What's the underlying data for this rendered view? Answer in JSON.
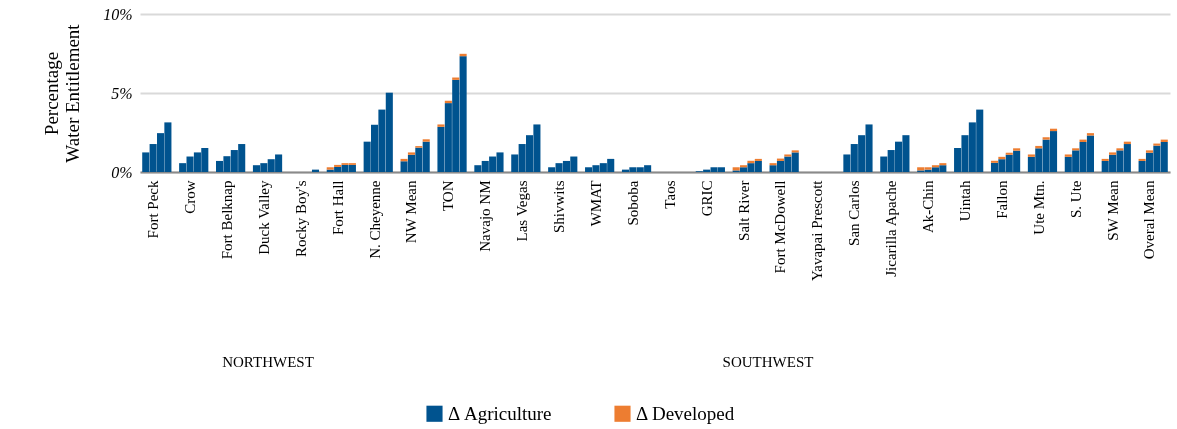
{
  "chart_data": {
    "type": "bar",
    "stacked": true,
    "ylabel": "Percentage Water Entitlement",
    "categories": [
      null,
      "Fort Peck",
      null,
      null,
      null,
      null,
      "Crow",
      null,
      null,
      null,
      null,
      "Fort Belknap",
      null,
      null,
      null,
      null,
      "Duck Valley",
      null,
      null,
      null,
      null,
      "Rocky Boy's",
      null,
      null,
      null,
      null,
      "Fort Hall",
      null,
      null,
      null,
      null,
      "N. Cheyenne",
      null,
      null,
      null,
      null,
      "NW Mean",
      null,
      null,
      null,
      null,
      "TON",
      null,
      null,
      null,
      null,
      "Navajo NM",
      null,
      null,
      null,
      null,
      "Las Vegas",
      null,
      null,
      null,
      null,
      "Shivwits",
      null,
      null,
      null,
      null,
      "WMAT",
      null,
      null,
      null,
      null,
      "Soboba",
      null,
      null,
      null,
      null,
      "Taos",
      null,
      null,
      null,
      null,
      "GRIC",
      null,
      null,
      null,
      null,
      "Salt River",
      null,
      null,
      null,
      null,
      "Fort McDowell",
      null,
      null,
      null,
      null,
      "Yavapai Prescott",
      null,
      null,
      null,
      null,
      "San Carlos",
      null,
      null,
      null,
      null,
      "Jicarilla Apache",
      null,
      null,
      null,
      null,
      "Ak-Chin",
      null,
      null,
      null,
      null,
      "Uintah",
      null,
      null,
      null,
      null,
      "Fallon",
      null,
      null,
      null,
      null,
      "Ute Mtn.",
      null,
      null,
      null,
      null,
      "S. Ute",
      null,
      null,
      null,
      null,
      "SW Mean",
      null,
      null,
      null,
      null,
      "Overal Mean",
      null,
      null
    ],
    "series": [
      {
        "name": "Δ Agriculture",
        "color": "#00538f",
        "values": [
          1.24,
          1.77,
          2.46,
          3.14,
          null,
          0.56,
          0.98,
          1.24,
          1.52,
          null,
          0.7,
          1.0,
          1.39,
          1.77,
          null,
          0.43,
          0.56,
          0.81,
          1.11,
          null,
          0,
          0,
          0,
          0.15,
          null,
          0.15,
          0.32,
          0.45,
          0.45,
          null,
          1.92,
          2.99,
          3.95,
          5.02,
          null,
          0.68,
          1.09,
          1.54,
          1.92,
          null,
          2.86,
          4.36,
          5.83,
          7.33,
          null,
          0.43,
          0.7,
          0.98,
          1.24,
          null,
          1.11,
          1.77,
          2.33,
          3.01,
          null,
          0.3,
          0.56,
          0.7,
          0.98,
          null,
          0.3,
          0.43,
          0.56,
          0.83,
          null,
          0.15,
          0.3,
          0.3,
          0.43,
          null,
          0,
          0,
          0,
          0,
          null,
          0.05,
          0.15,
          0.3,
          0.3,
          null,
          0.1,
          0.3,
          0.56,
          0.7,
          null,
          0.43,
          0.7,
          0.98,
          1.24,
          null,
          0,
          0,
          0,
          0,
          null,
          1.11,
          1.77,
          2.33,
          3.01,
          null,
          0.98,
          1.39,
          1.92,
          2.33,
          null,
          0.1,
          0.15,
          0.3,
          0.43,
          null,
          1.52,
          2.33,
          3.14,
          3.95,
          null,
          0.58,
          0.81,
          1.09,
          1.35,
          null,
          0.96,
          1.5,
          2.05,
          2.59,
          null,
          0.96,
          1.37,
          1.9,
          2.31,
          null,
          0.7,
          1.09,
          1.37,
          1.77,
          null,
          0.7,
          1.22,
          1.67,
          1.9
        ]
      },
      {
        "name": "Δ Developed",
        "color": "#ed7d31",
        "values": [
          0,
          0,
          0,
          0,
          null,
          0,
          0,
          0,
          0,
          null,
          0,
          0,
          0,
          0,
          null,
          0,
          0,
          0,
          0,
          null,
          0,
          0,
          0,
          0,
          null,
          0.15,
          0.13,
          0.11,
          0.11,
          null,
          0,
          0,
          0,
          0,
          null,
          0.15,
          0.15,
          0.1,
          0.15,
          null,
          0.15,
          0.15,
          0.15,
          0.15,
          null,
          0,
          0,
          0,
          0,
          null,
          0,
          0,
          0,
          0,
          null,
          0,
          0,
          0,
          0,
          null,
          0,
          0,
          0,
          0,
          null,
          0,
          0,
          0,
          0,
          null,
          0,
          0,
          0,
          0,
          null,
          0,
          0,
          0,
          0,
          null,
          0.2,
          0.13,
          0.15,
          0.13,
          null,
          0.13,
          0.15,
          0.13,
          0.13,
          null,
          0,
          0,
          0,
          0,
          null,
          0,
          0,
          0,
          0,
          null,
          0,
          0,
          0,
          0,
          null,
          0.2,
          0.15,
          0.13,
          0.13,
          null,
          0,
          0,
          0,
          0,
          null,
          0.13,
          0.15,
          0.13,
          0.15,
          null,
          0.15,
          0.15,
          0.15,
          0.15,
          null,
          0.15,
          0.13,
          0.15,
          0.15,
          null,
          0.13,
          0.15,
          0.13,
          0.15,
          null,
          0.13,
          0.15,
          0.13,
          0.15
        ]
      }
    ],
    "ylim": [
      0,
      10
    ],
    "yticks": [
      {
        "value": 0,
        "label": "0%"
      },
      {
        "value": 5,
        "label": "5%"
      },
      {
        "value": 10,
        "label": "10%"
      }
    ],
    "grid": "y",
    "legend": "bottom",
    "annotations": [
      "NORTHWEST",
      "SOUTHWEST"
    ]
  }
}
